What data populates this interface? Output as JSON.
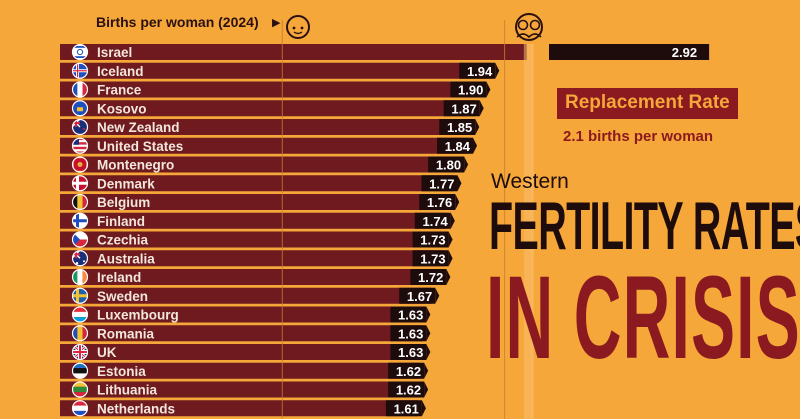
{
  "header": {
    "label": "Births per woman (2024)",
    "arrow": "▶"
  },
  "replacement": {
    "label": "Replacement Rate",
    "sub": "2.1 births per woman",
    "value": 2.1
  },
  "titles": {
    "western": "Western",
    "main": "FERTILITY RATES",
    "crisis": "IN CRISIS"
  },
  "colors": {
    "background": "#f5a73a",
    "bar": "#6e1a1f",
    "bar_highlight": "#1e0c0c",
    "label_bg": "#1e0c0c",
    "accent": "#8a1a1f",
    "text_light": "#f3e6dc"
  },
  "icons": {
    "one_child": "baby-face-icon",
    "two_children": "two-children-icon"
  },
  "chart_data": {
    "type": "bar",
    "orientation": "horizontal",
    "ylabel": "Births per woman (2024)",
    "categories": [
      "Israel",
      "Iceland",
      "France",
      "Kosovo",
      "New Zealand",
      "United States",
      "Montenegro",
      "Denmark",
      "Belgium",
      "Finland",
      "Czechia",
      "Australia",
      "Ireland",
      "Sweden",
      "Luxembourg",
      "Romania",
      "UK",
      "Estonia",
      "Lithuania",
      "Netherlands"
    ],
    "values": [
      2.92,
      1.94,
      1.9,
      1.87,
      1.85,
      1.84,
      1.8,
      1.77,
      1.76,
      1.74,
      1.73,
      1.73,
      1.72,
      1.67,
      1.63,
      1.63,
      1.63,
      1.62,
      1.62,
      1.61
    ],
    "value_labels": [
      "2.92",
      "1.94",
      "1.90",
      "1.87",
      "1.85",
      "1.84",
      "1.80",
      "1.77",
      "1.76",
      "1.74",
      "1.73",
      "1.73",
      "1.72",
      "1.67",
      "1.63",
      "1.63",
      "1.63",
      "1.62",
      "1.62",
      "1.61"
    ],
    "flags": [
      "il",
      "is",
      "fr",
      "xk",
      "nz",
      "us",
      "me",
      "dk",
      "be",
      "fi",
      "cz",
      "au",
      "ie",
      "se",
      "lu",
      "ro",
      "uk",
      "ee",
      "lt",
      "nl"
    ],
    "reference_lines": [
      1,
      2
    ],
    "replacement_rate": 2.1,
    "grid": true
  }
}
